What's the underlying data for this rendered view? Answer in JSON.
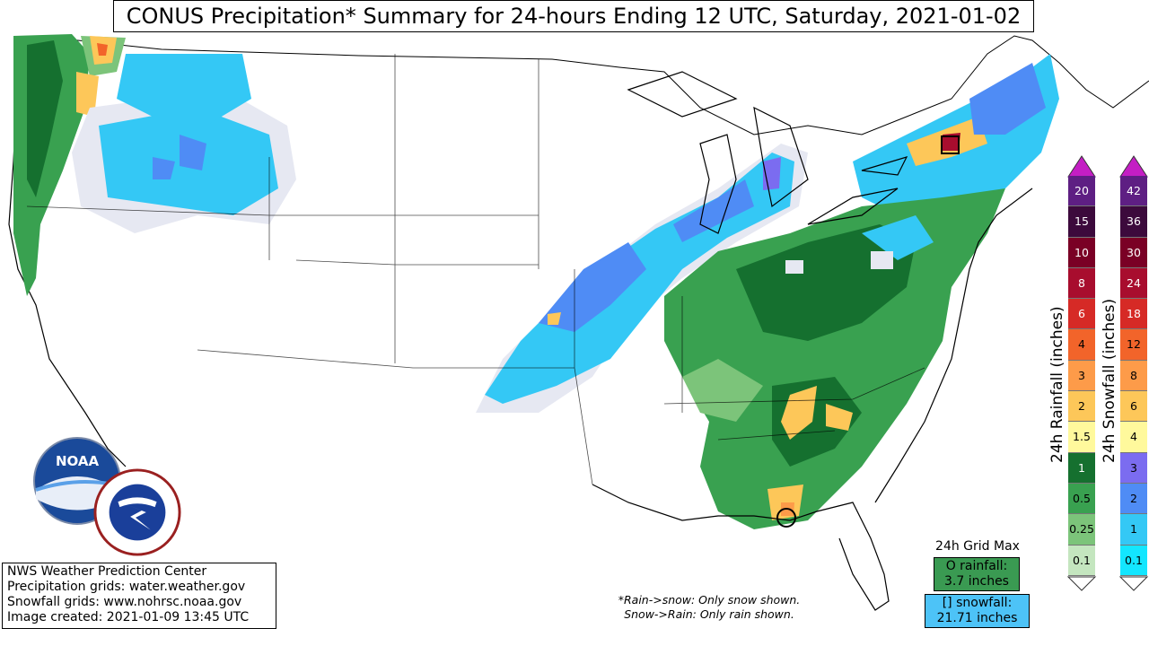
{
  "title": "CONUS Precipitation* Summary for 24-hours Ending 12 UTC, Saturday, 2021-01-02",
  "credits": {
    "line1": "NWS Weather Prediction Center",
    "line2": "Precipitation grids: water.weather.gov",
    "line3": "Snowfall grids: www.nohrsc.noaa.gov",
    "line4": "Image created: 2021-01-09 13:45 UTC"
  },
  "note": {
    "line1": "*Rain->snow: Only snow shown.",
    "line2": "Snow->Rain: Only rain shown."
  },
  "grid_max": {
    "title": "24h Grid Max",
    "rain_line1": "O rainfall:",
    "rain_line2": "3.7 inches",
    "snow_line1": "[] snowfall:",
    "snow_line2": "21.71 inches"
  },
  "logos": {
    "noaa": "NOAA",
    "nws": "NATIONAL WEATHER SERVICE"
  },
  "rain_scale": {
    "label": "24h Rainfall (inches)",
    "levels": [
      "20",
      "15",
      "10",
      "8",
      "6",
      "4",
      "3",
      "2",
      "1.5",
      "1",
      "0.5",
      "0.25",
      "0.1"
    ],
    "colors": [
      "#5e1f83",
      "#3c0a3c",
      "#7a0025",
      "#a80d2e",
      "#d62a26",
      "#f2642a",
      "#fd9b49",
      "#fdc759",
      "#fff99c",
      "#15702f",
      "#39a150",
      "#7cc47a",
      "#c4e6bf"
    ]
  },
  "snow_scale": {
    "label": "24h Snowfall (inches)",
    "levels": [
      "42",
      "36",
      "30",
      "24",
      "18",
      "12",
      "8",
      "6",
      "4",
      "3",
      "2",
      "1",
      "0.1"
    ],
    "colors": [
      "#5e1f83",
      "#3c0a3c",
      "#7a0025",
      "#a80d2e",
      "#d62a26",
      "#f2642a",
      "#fd9b49",
      "#fdc759",
      "#fff99c",
      "#7b6cf0",
      "#4f8cf5",
      "#34c8f5",
      "#13e6ff"
    ]
  },
  "colors": {
    "title_border": "#000000",
    "rain_box": "#3a9a52",
    "snow_box": "#4dc3f7",
    "arrow_top": "#c41ec4"
  }
}
